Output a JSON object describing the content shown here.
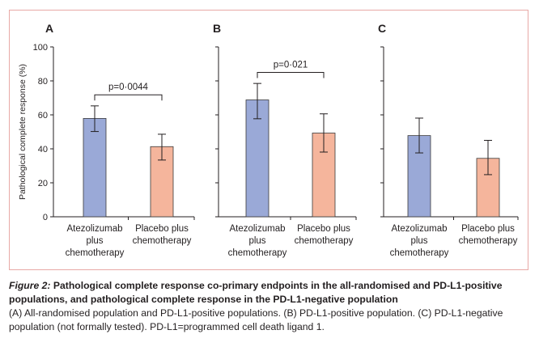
{
  "chart_data": [
    {
      "type": "bar",
      "panel_label": "A",
      "categories": [
        "Atezolizumab plus chemotherapy",
        "Placebo plus chemotherapy"
      ],
      "category_lines": [
        [
          "Atezolizumab",
          "plus",
          "chemotherapy"
        ],
        [
          "Placebo plus",
          "chemotherapy"
        ]
      ],
      "values": [
        57.9,
        41.3
      ],
      "error_low": [
        50.2,
        33.4
      ],
      "error_high": [
        65.3,
        48.6
      ],
      "colors": [
        "#9aa9d7",
        "#f5b59c"
      ],
      "annotation": "p=0·0044",
      "ylabel": "Pathological complete response (%)",
      "ylim": [
        0,
        100
      ],
      "yticks": [
        "0",
        "20",
        "40",
        "60",
        "80",
        "100"
      ]
    },
    {
      "type": "bar",
      "panel_label": "B",
      "categories": [
        "Atezolizumab plus chemotherapy",
        "Placebo plus chemotherapy"
      ],
      "category_lines": [
        [
          "Atezolizumab",
          "plus",
          "chemotherapy"
        ],
        [
          "Placebo plus",
          "chemotherapy"
        ]
      ],
      "values": [
        68.8,
        49.3
      ],
      "error_low": [
        57.7,
        38.1
      ],
      "error_high": [
        78.5,
        60.6
      ],
      "colors": [
        "#9aa9d7",
        "#f5b59c"
      ],
      "annotation": "p=0·021",
      "ylim": [
        0,
        100
      ]
    },
    {
      "type": "bar",
      "panel_label": "C",
      "categories": [
        "Atezolizumab plus chemotherapy",
        "Placebo plus chemotherapy"
      ],
      "category_lines": [
        [
          "Atezolizumab",
          "plus",
          "chemotherapy"
        ],
        [
          "Placebo plus",
          "chemotherapy"
        ]
      ],
      "values": [
        47.8,
        34.4
      ],
      "error_low": [
        37.6,
        24.8
      ],
      "error_high": [
        58.1,
        45.0
      ],
      "colors": [
        "#9aa9d7",
        "#f5b59c"
      ],
      "annotation": "",
      "ylim": [
        0,
        100
      ]
    }
  ],
  "caption": {
    "label": "Figure 2:",
    "title": "Pathological complete response co-primary endpoints in the all-randomised and PD-L1-positive populations, and pathological complete response in the PD-L1-negative population",
    "body": "(A) All-randomised population and PD-L1-positive populations. (B) PD-L1-positive population. (C) PD-L1-negative population (not formally tested). PD-L1=programmed cell death ligand 1."
  }
}
